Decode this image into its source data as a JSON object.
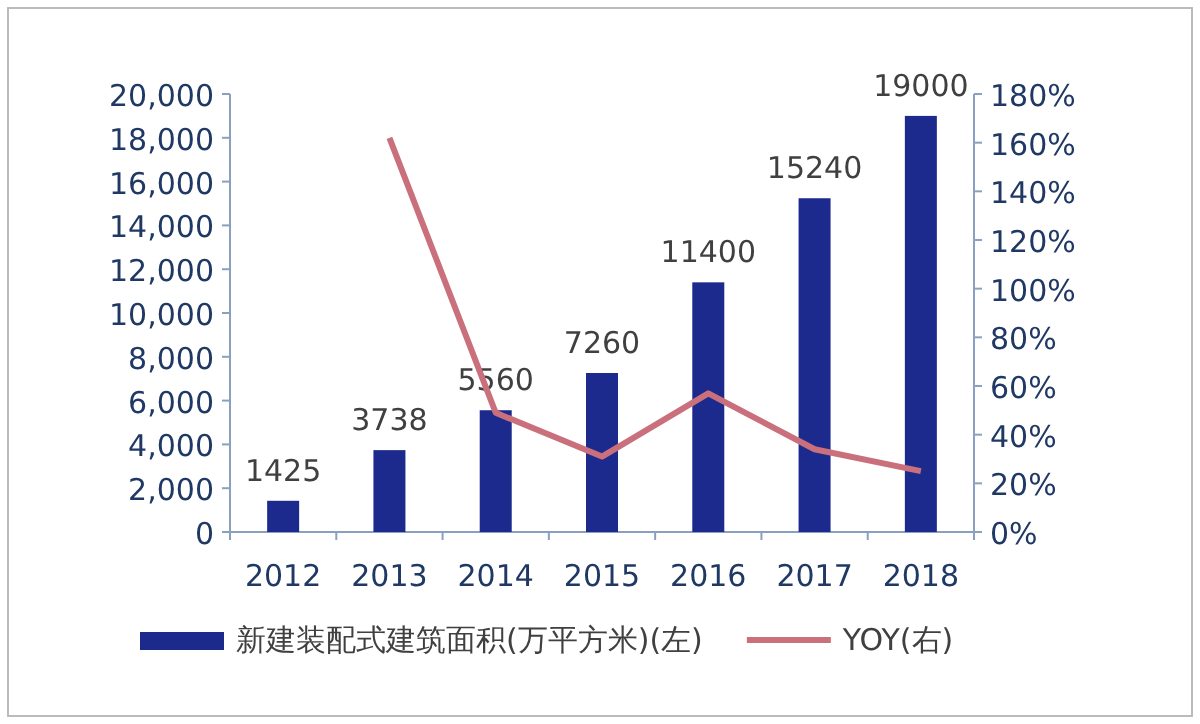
{
  "chart_data": {
    "type": "bar",
    "categories": [
      "2012",
      "2013",
      "2014",
      "2015",
      "2016",
      "2017",
      "2018"
    ],
    "series": [
      {
        "name": "新建装配式建筑面积(万平方米)(左)",
        "color": "#1c2a8e",
        "values": [
          1425,
          3738,
          5560,
          7260,
          11400,
          15240,
          19000
        ],
        "value_labels": [
          "1425",
          "3738",
          "5560",
          "7260",
          "11400",
          "15240",
          "19000"
        ]
      },
      {
        "name": "YOY(右)",
        "type": "line",
        "axis": "y2",
        "color": "#c9707c",
        "values": [
          null,
          162,
          49,
          31,
          57,
          34,
          25
        ]
      }
    ],
    "ylim": [
      0,
      20000
    ],
    "yticks": [
      0,
      {
        "value": 2000,
        "label": "2,000"
      },
      {
        "value": 4000,
        "label": "4,000"
      },
      {
        "value": 6000,
        "label": "6,000"
      },
      {
        "value": 8000,
        "label": "8,000"
      },
      {
        "value": 10000,
        "label": "10,000"
      },
      {
        "value": 12000,
        "label": "12,000"
      },
      {
        "value": 14000,
        "label": "14,000"
      },
      {
        "value": 16000,
        "label": "16,000"
      },
      {
        "value": 18000,
        "label": "18,000"
      },
      {
        "value": 20000,
        "label": "20,000"
      }
    ],
    "y2lim": [
      0,
      180
    ],
    "y2ticks": [
      {
        "value": 0,
        "label": "0%"
      },
      {
        "value": 20,
        "label": "20%"
      },
      {
        "value": 40,
        "label": "40%"
      },
      {
        "value": 60,
        "label": "60%"
      },
      {
        "value": 80,
        "label": "80%"
      },
      {
        "value": 100,
        "label": "100%"
      },
      {
        "value": 120,
        "label": "120%"
      },
      {
        "value": 140,
        "label": "140%"
      },
      {
        "value": 160,
        "label": "160%"
      },
      {
        "value": 180,
        "label": "180%"
      }
    ],
    "legend": "bottom",
    "marker": "none",
    "line_style": "solid"
  }
}
